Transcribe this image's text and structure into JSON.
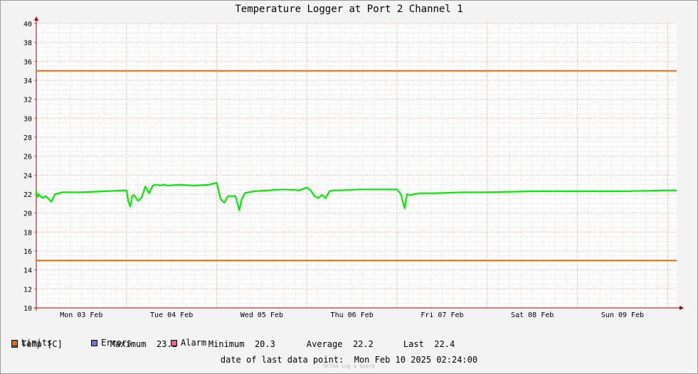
{
  "chart_data": {
    "type": "line",
    "title": "Temperature Logger at Port 2 Channel 1",
    "ylim": [
      10,
      40
    ],
    "yticks": [
      10,
      12,
      14,
      16,
      18,
      20,
      22,
      24,
      26,
      28,
      30,
      32,
      34,
      36,
      38,
      40
    ],
    "xlim": [
      "2025-02-03 00:00",
      "2025-02-10 02:24"
    ],
    "xtick_labels": [
      "Mon 03 Feb",
      "Tue 04 Feb",
      "Wed 05 Feb",
      "Thu 06 Feb",
      "Fri 07 Feb",
      "Sat 08 Feb",
      "Sun 09 Feb"
    ],
    "grid": true,
    "series": [
      {
        "name": "Temp [C]",
        "color": "#00ee00",
        "x": [
          "2025-02-02 21:30",
          "2025-02-02 23:00",
          "2025-02-03 00:00",
          "2025-02-03 00:20",
          "2025-02-03 00:40",
          "2025-02-03 01:00",
          "2025-02-03 01:40",
          "2025-02-03 02:30",
          "2025-02-03 03:00",
          "2025-02-03 04:00",
          "2025-02-03 05:00",
          "2025-02-03 06:00",
          "2025-02-03 07:00",
          "2025-02-03 08:00",
          "2025-02-03 12:00",
          "2025-02-03 18:00",
          "2025-02-04 00:00",
          "2025-02-04 00:30",
          "2025-02-04 01:00",
          "2025-02-04 01:30",
          "2025-02-04 02:00",
          "2025-02-04 03:00",
          "2025-02-04 04:00",
          "2025-02-04 05:00",
          "2025-02-04 06:00",
          "2025-02-04 07:00",
          "2025-02-04 07:40",
          "2025-02-04 08:20",
          "2025-02-04 09:00",
          "2025-02-04 09:30",
          "2025-02-04 10:00",
          "2025-02-04 11:00",
          "2025-02-04 14:00",
          "2025-02-04 18:00",
          "2025-02-04 22:00",
          "2025-02-05 00:00",
          "2025-02-05 01:00",
          "2025-02-05 02:00",
          "2025-02-05 03:00",
          "2025-02-05 04:00",
          "2025-02-05 05:00",
          "2025-02-05 06:00",
          "2025-02-05 06:40",
          "2025-02-05 07:30",
          "2025-02-05 08:30",
          "2025-02-05 10:00",
          "2025-02-05 14:00",
          "2025-02-05 18:00",
          "2025-02-05 22:00",
          "2025-02-06 00:00",
          "2025-02-06 01:00",
          "2025-02-06 02:00",
          "2025-02-06 03:00",
          "2025-02-06 04:00",
          "2025-02-06 05:00",
          "2025-02-06 06:00",
          "2025-02-06 07:00",
          "2025-02-06 09:00",
          "2025-02-06 14:00",
          "2025-02-06 20:00",
          "2025-02-07 00:00",
          "2025-02-07 01:00",
          "2025-02-07 02:00",
          "2025-02-07 02:40",
          "2025-02-07 03:30",
          "2025-02-07 04:30",
          "2025-02-07 06:00",
          "2025-02-07 10:00",
          "2025-02-07 18:00",
          "2025-02-08 00:00",
          "2025-02-08 12:00",
          "2025-02-09 00:00",
          "2025-02-09 12:00",
          "2025-02-10 00:00",
          "2025-02-10 02:24"
        ],
        "y": [
          22.1,
          22.1,
          22.3,
          21.7,
          22.0,
          21.8,
          21.6,
          21.8,
          21.6,
          21.2,
          22.0,
          22.1,
          22.2,
          22.2,
          22.2,
          22.3,
          22.4,
          21.2,
          20.7,
          21.8,
          21.9,
          21.3,
          21.6,
          22.8,
          22.1,
          22.9,
          23.0,
          23.0,
          22.9,
          23.0,
          23.0,
          22.9,
          23.0,
          22.9,
          23.0,
          23.2,
          21.5,
          21.1,
          21.8,
          21.8,
          21.8,
          20.3,
          21.5,
          22.1,
          22.2,
          22.3,
          22.4,
          22.5,
          22.4,
          22.7,
          22.4,
          21.8,
          21.6,
          21.9,
          21.6,
          22.3,
          22.4,
          22.4,
          22.5,
          22.5,
          22.5,
          22.0,
          20.5,
          22.0,
          21.9,
          22.0,
          22.1,
          22.1,
          22.2,
          22.2,
          22.3,
          22.3,
          22.3,
          22.4,
          22.4
        ]
      },
      {
        "name": "Limits",
        "color": "#ee6600",
        "values": [
          35,
          15
        ]
      }
    ],
    "legend": [
      {
        "label": "Temp [C]",
        "color": "#00ee00"
      },
      {
        "label": "Limits",
        "color": "#ee6600"
      },
      {
        "label": "Errors",
        "color": "#6677ee"
      },
      {
        "label": "Alarm",
        "color": "#ee6677"
      }
    ],
    "stats": [
      {
        "label": "Maximum",
        "value": "23.2"
      },
      {
        "label": "Minimum",
        "value": "20.3"
      },
      {
        "label": "Average",
        "value": "22.2"
      },
      {
        "label": "Last",
        "value": "22.4"
      }
    ]
  },
  "footer": {
    "label": "date of last data point:",
    "value": "Mon Feb 10 2025 02:24:00"
  },
  "watermark": "OCTAA Log & Guard"
}
